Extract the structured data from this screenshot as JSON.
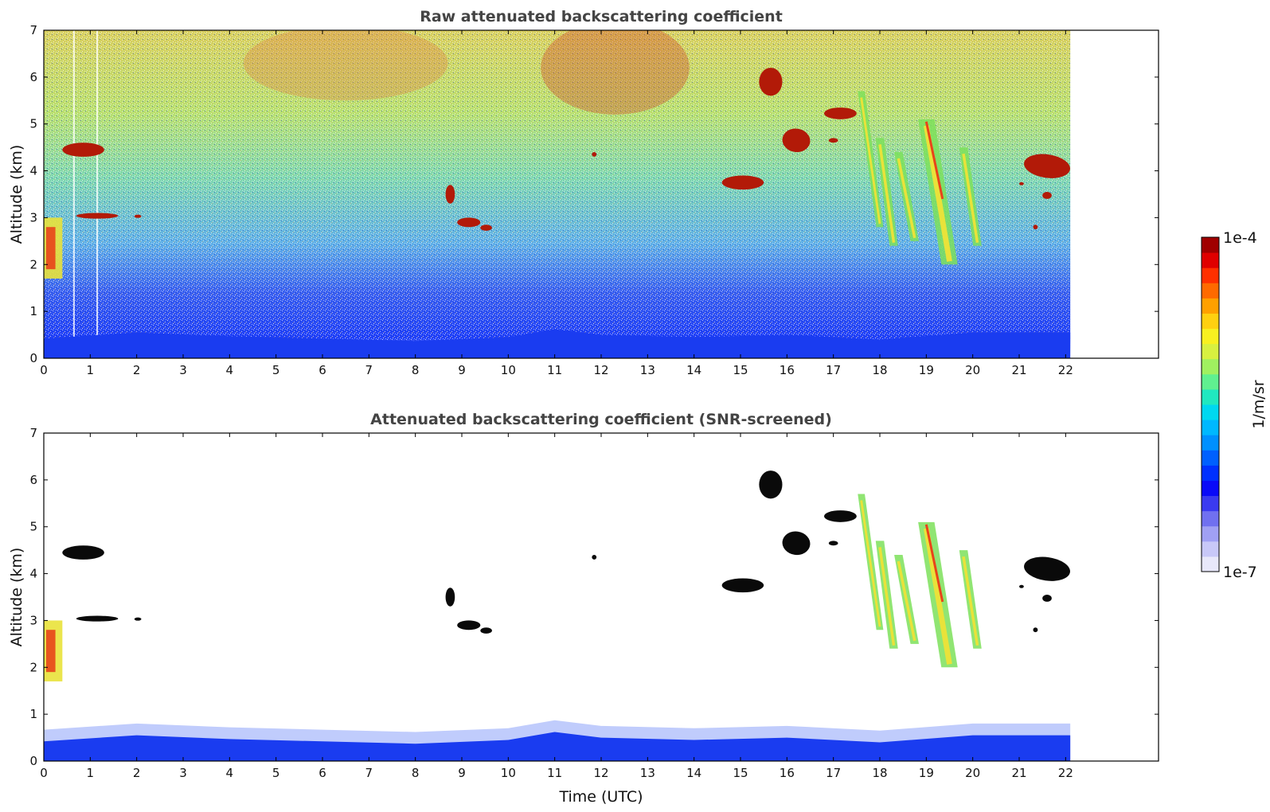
{
  "colors": {
    "ground_layer": "#1a3cf0",
    "ground_layer_light": "#4a6df5",
    "cloud_raw": "#b21a08",
    "cloud_screened": "#0a0a0a",
    "virga_green": "#7ce05a",
    "virga_yellow": "#e9e23a",
    "virga_red": "#e8441a",
    "colormap": [
      "#e8e8fa",
      "#c8c8f8",
      "#a0a0f4",
      "#7070f0",
      "#3a3af0",
      "#0a0af8",
      "#0030ff",
      "#0060ff",
      "#0090ff",
      "#00b8ff",
      "#00d8f0",
      "#20e8c0",
      "#60f090",
      "#a0f060",
      "#d8f040",
      "#f8f020",
      "#ffd010",
      "#ffa000",
      "#ff6a00",
      "#ff3000",
      "#e00000",
      "#a00000"
    ]
  },
  "chart_data": [
    {
      "type": "heatmap",
      "title": "Raw attenuated backscattering coefficient",
      "xlabel": "",
      "ylabel": "Altitude (km)",
      "xlim": [
        0,
        24
      ],
      "ylim": [
        0,
        7
      ],
      "xticks": [
        0,
        1,
        2,
        3,
        4,
        5,
        6,
        7,
        8,
        9,
        10,
        11,
        12,
        13,
        14,
        15,
        16,
        17,
        18,
        19,
        20,
        21,
        22
      ],
      "yticks": [
        0,
        1,
        2,
        3,
        4,
        5,
        6,
        7
      ],
      "data_time_range": [
        0,
        22.1
      ],
      "boundary_layer": {
        "time": [
          0,
          2,
          4,
          6,
          8,
          10,
          11,
          12,
          14,
          16,
          18,
          20,
          22.1
        ],
        "top_km": [
          0.42,
          0.55,
          0.47,
          0.42,
          0.37,
          0.45,
          0.62,
          0.5,
          0.45,
          0.5,
          0.4,
          0.55,
          0.55
        ]
      },
      "clouds": [
        {
          "t0": 0.4,
          "t1": 1.3,
          "z0": 4.3,
          "z1": 4.6
        },
        {
          "t0": 0.7,
          "t1": 1.6,
          "z0": 2.98,
          "z1": 3.1
        },
        {
          "t0": 1.95,
          "t1": 2.1,
          "z0": 3.0,
          "z1": 3.06
        },
        {
          "t0": 8.65,
          "t1": 8.85,
          "z0": 3.3,
          "z1": 3.7
        },
        {
          "t0": 8.9,
          "t1": 9.4,
          "z0": 2.8,
          "z1": 3.0
        },
        {
          "t0": 9.4,
          "t1": 9.65,
          "z0": 2.72,
          "z1": 2.85
        },
        {
          "t0": 11.8,
          "t1": 11.9,
          "z0": 4.3,
          "z1": 4.4
        },
        {
          "t0": 14.6,
          "t1": 15.5,
          "z0": 3.6,
          "z1": 3.9
        },
        {
          "t0": 15.4,
          "t1": 15.9,
          "z0": 5.6,
          "z1": 6.2
        },
        {
          "t0": 15.9,
          "t1": 16.5,
          "z0": 4.4,
          "z1": 4.9
        },
        {
          "t0": 16.8,
          "t1": 17.5,
          "z0": 5.1,
          "z1": 5.35
        },
        {
          "t0": 16.9,
          "t1": 17.1,
          "z0": 4.6,
          "z1": 4.7
        },
        {
          "t0": 21.1,
          "t1": 22.1,
          "z0": 3.85,
          "z1": 4.35
        },
        {
          "t0": 21.5,
          "t1": 21.7,
          "z0": 3.4,
          "z1": 3.55
        },
        {
          "t0": 21.3,
          "t1": 21.4,
          "z0": 2.75,
          "z1": 2.85
        },
        {
          "t0": 21.0,
          "t1": 21.1,
          "z0": 3.7,
          "z1": 3.75
        }
      ],
      "virga": [
        {
          "tx": 17.6,
          "tz": 5.7,
          "bx": 18.0,
          "bz": 2.8,
          "width_h": 0.15
        },
        {
          "tx": 18.0,
          "tz": 4.7,
          "bx": 18.3,
          "bz": 2.4,
          "width_h": 0.18
        },
        {
          "tx": 18.4,
          "tz": 4.4,
          "bx": 18.75,
          "bz": 2.5,
          "width_h": 0.18
        },
        {
          "tx": 19.0,
          "tz": 5.1,
          "bx": 19.5,
          "bz": 2.0,
          "width_h": 0.35
        },
        {
          "tx": 19.8,
          "tz": 4.5,
          "bx": 20.1,
          "bz": 2.4,
          "width_h": 0.18
        }
      ]
    },
    {
      "type": "heatmap",
      "title": "Attenuated backscattering coefficient (SNR-screened)",
      "xlabel": "Time (UTC)",
      "ylabel": "Altitude (km)",
      "xlim": [
        0,
        24
      ],
      "ylim": [
        0,
        7
      ],
      "xticks": [
        0,
        1,
        2,
        3,
        4,
        5,
        6,
        7,
        8,
        9,
        10,
        11,
        12,
        13,
        14,
        15,
        16,
        17,
        18,
        19,
        20,
        21,
        22
      ],
      "yticks": [
        0,
        1,
        2,
        3,
        4,
        5,
        6,
        7
      ],
      "data_time_range": [
        0,
        22.1
      ]
    }
  ],
  "colorbar": {
    "top_label": "1e-4",
    "bottom_label": "1e-7",
    "units": "1/m/sr",
    "scale": "log",
    "range": [
      1e-07,
      0.0001
    ]
  }
}
